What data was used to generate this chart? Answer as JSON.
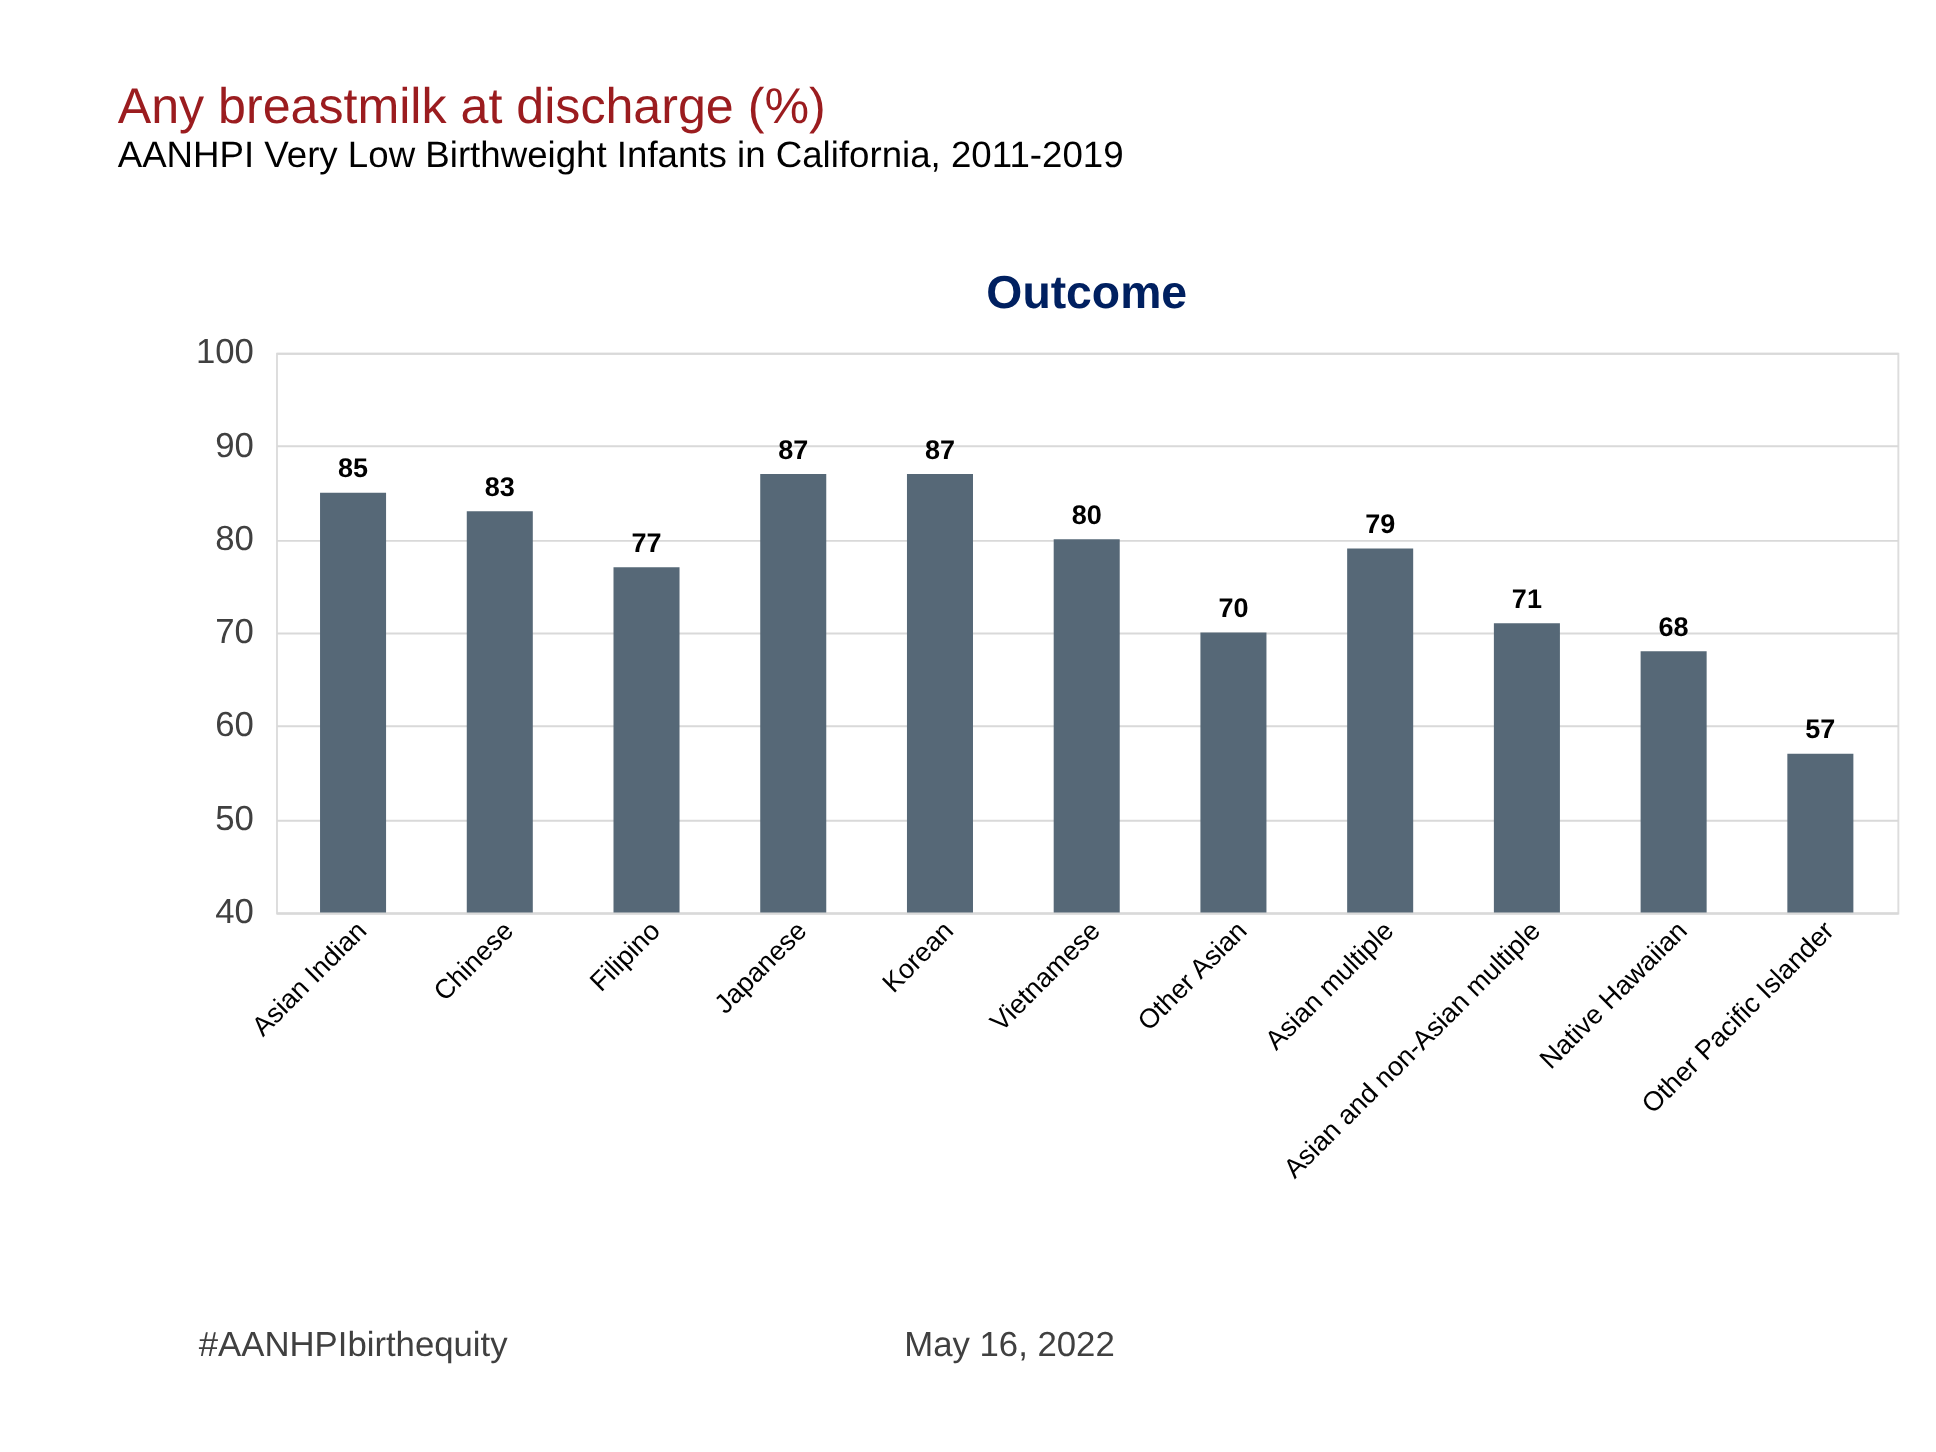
{
  "chart_data": {
    "type": "bar",
    "title": "Any breastmilk at discharge (%)",
    "subtitle": "AANHPI Very Low Birthweight Infants in California, 2011-2019",
    "categories": [
      "Asian Indian",
      "Chinese",
      "Filipino",
      "Japanese",
      "Korean",
      "Vietnamese",
      "Other Asian",
      "Asian multiple",
      "Asian and non-Asian multiple",
      "Native Hawaiian",
      "Other Pacific Islander"
    ],
    "values": [
      85,
      83,
      77,
      87,
      87,
      80,
      70,
      79,
      71,
      68,
      57
    ],
    "color": "#566877",
    "data_labels": true,
    "ylim": [
      40,
      100
    ],
    "yticks": [
      40,
      50,
      60,
      70,
      80,
      90,
      100
    ],
    "grid": "y",
    "annotations": [
      "Outcome",
      "#AANHPIbirthequity",
      "May 16, 2022"
    ]
  }
}
